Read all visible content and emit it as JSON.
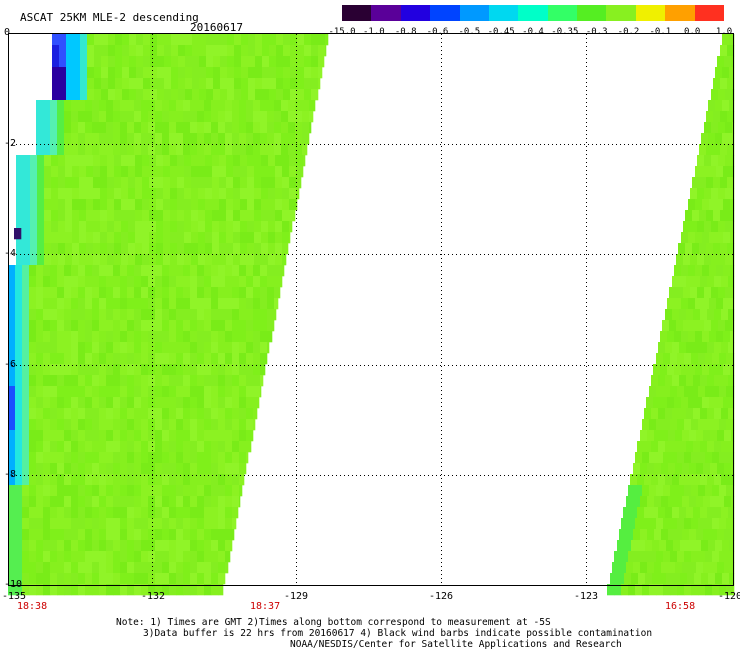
{
  "header": {
    "title": "ASCAT 25KM MLE-2 descending",
    "date": "20160617"
  },
  "colorbar": {
    "labels": [
      "-15.0",
      "-1.0",
      "-0.8",
      "-0.6",
      "-0.5",
      "-0.45",
      "-0.4",
      "-0.35",
      "-0.3",
      "-0.2",
      "-0.1",
      "0.0",
      "1.0"
    ],
    "colors": [
      "#2a0033",
      "#5a0099",
      "#2200e0",
      "#0044ff",
      "#0099ff",
      "#00d8f0",
      "#00ffc8",
      "#33ff66",
      "#55ee22",
      "#88f020",
      "#f0f000",
      "#ffa000",
      "#ff3020"
    ]
  },
  "axes": {
    "y_ticks": [
      "0",
      "-2",
      "-4",
      "-6",
      "-8",
      "-10"
    ],
    "x_ticks": [
      "-135",
      "-132",
      "-129",
      "-126",
      "-123",
      "-120"
    ]
  },
  "times": {
    "left": "18:38",
    "mid": "18:37",
    "right": "16:58"
  },
  "notes": {
    "line1": "Note: 1) Times are GMT 2)Times along bottom correspond to measurement at -5S",
    "line2": "3)Data buffer is 22 hrs from 20160617 4) Black wind barbs indicate possible contamination",
    "line3": "NOAA/NESDIS/Center for Satellite Applications and Research"
  }
}
